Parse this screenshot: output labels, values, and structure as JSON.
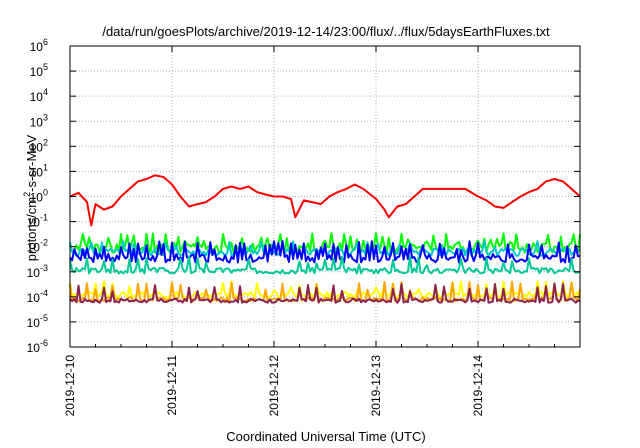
{
  "chart_data": {
    "type": "line",
    "title": "/data/run/goesPlots/archive/2019-12-14/23:00/flux/../flux/5daysEarthFluxes.txt",
    "xlabel": "Coordinated Universal Time (UTC)",
    "ylabel": {
      "base": "protons/cm",
      "exp": "2",
      "rest": "-s-sr-MeV"
    },
    "yscale": "log",
    "ylim": [
      -6,
      6
    ],
    "yticks": [
      {
        "base": "10",
        "exp": "6"
      },
      {
        "base": "10",
        "exp": "5"
      },
      {
        "base": "10",
        "exp": "4"
      },
      {
        "base": "10",
        "exp": "3"
      },
      {
        "base": "10",
        "exp": "2"
      },
      {
        "base": "10",
        "exp": "1"
      },
      {
        "base": "10",
        "exp": "0"
      },
      {
        "base": "10",
        "exp": "-1"
      },
      {
        "base": "10",
        "exp": "-2"
      },
      {
        "base": "10",
        "exp": "-3"
      },
      {
        "base": "10",
        "exp": "-4"
      },
      {
        "base": "10",
        "exp": "-5"
      },
      {
        "base": "10",
        "exp": "-6"
      }
    ],
    "xlim": [
      "2019-12-10 00:00",
      "2019-12-15 00:00"
    ],
    "xticks": [
      "2019-12-10",
      "2019-12-11",
      "2019-12-12",
      "2019-12-13",
      "2019-12-14"
    ],
    "grid": true,
    "series": [
      {
        "color": "#ff0000",
        "points": [
          [
            "2019-12-10 00:00",
            1.0
          ],
          [
            "2019-12-10 02:00",
            1.4
          ],
          [
            "2019-12-10 04:00",
            0.6
          ],
          [
            "2019-12-10 05:00",
            0.07
          ],
          [
            "2019-12-10 06:00",
            0.5
          ],
          [
            "2019-12-10 08:00",
            0.3
          ],
          [
            "2019-12-10 10:00",
            0.4
          ],
          [
            "2019-12-10 12:00",
            1.0
          ],
          [
            "2019-12-10 14:00",
            2.0
          ],
          [
            "2019-12-10 16:00",
            4.0
          ],
          [
            "2019-12-10 18:00",
            5.0
          ],
          [
            "2019-12-10 20:00",
            7.0
          ],
          [
            "2019-12-10 22:00",
            6.0
          ],
          [
            "2019-12-11 00:00",
            3.0
          ],
          [
            "2019-12-11 02:00",
            1.0
          ],
          [
            "2019-12-11 04:00",
            0.4
          ],
          [
            "2019-12-11 06:00",
            0.5
          ],
          [
            "2019-12-11 08:00",
            0.6
          ],
          [
            "2019-12-11 10:00",
            1.0
          ],
          [
            "2019-12-11 12:00",
            2.0
          ],
          [
            "2019-12-11 14:00",
            2.5
          ],
          [
            "2019-12-11 16:00",
            2.0
          ],
          [
            "2019-12-11 18:00",
            2.5
          ],
          [
            "2019-12-11 20:00",
            1.5
          ],
          [
            "2019-12-11 22:00",
            1.2
          ],
          [
            "2019-12-12 00:00",
            1.0
          ],
          [
            "2019-12-12 02:00",
            1.0
          ],
          [
            "2019-12-12 04:00",
            0.8
          ],
          [
            "2019-12-12 05:00",
            0.15
          ],
          [
            "2019-12-12 07:00",
            0.7
          ],
          [
            "2019-12-12 09:00",
            0.6
          ],
          [
            "2019-12-12 11:00",
            0.5
          ],
          [
            "2019-12-12 13:00",
            1.0
          ],
          [
            "2019-12-12 15:00",
            1.5
          ],
          [
            "2019-12-12 17:00",
            2.0
          ],
          [
            "2019-12-12 19:00",
            3.0
          ],
          [
            "2019-12-12 21:00",
            2.0
          ],
          [
            "2019-12-13 00:00",
            0.8
          ],
          [
            "2019-12-13 02:00",
            0.3
          ],
          [
            "2019-12-13 03:00",
            0.15
          ],
          [
            "2019-12-13 05:00",
            0.4
          ],
          [
            "2019-12-13 07:00",
            0.5
          ],
          [
            "2019-12-13 09:00",
            1.0
          ],
          [
            "2019-12-13 11:00",
            2.0
          ],
          [
            "2019-12-13 13:00",
            2.0
          ],
          [
            "2019-12-13 15:00",
            2.0
          ],
          [
            "2019-12-13 17:00",
            2.0
          ],
          [
            "2019-12-13 19:00",
            2.0
          ],
          [
            "2019-12-13 21:00",
            2.0
          ],
          [
            "2019-12-14 00:00",
            1.0
          ],
          [
            "2019-12-14 02:00",
            0.7
          ],
          [
            "2019-12-14 04:00",
            0.4
          ],
          [
            "2019-12-14 06:00",
            0.35
          ],
          [
            "2019-12-14 08:00",
            0.6
          ],
          [
            "2019-12-14 10:00",
            1.0
          ],
          [
            "2019-12-14 12:00",
            1.5
          ],
          [
            "2019-12-14 14:00",
            2.0
          ],
          [
            "2019-12-14 16:00",
            4.0
          ],
          [
            "2019-12-14 18:00",
            5.0
          ],
          [
            "2019-12-14 20:00",
            4.0
          ],
          [
            "2019-12-14 22:00",
            2.0
          ],
          [
            "2019-12-15 00:00",
            1.0
          ]
        ]
      },
      {
        "color": "#00ff00",
        "baseline": 0.009,
        "spike": 0.025,
        "amp": 1.6,
        "seed": 11,
        "spikeEvery": 3
      },
      {
        "color": "#00c8c8",
        "baseline": 0.006,
        "spike": 0.012,
        "amp": 1.4,
        "seed": 5,
        "spikeEvery": 5
      },
      {
        "color": "#0000ff",
        "baseline": 0.0035,
        "spike": 0.012,
        "amp": 1.5,
        "seed": 7,
        "spikeEvery": 2
      },
      {
        "color": "#00c896",
        "baseline": 0.0011,
        "spike": 0.003,
        "amp": 1.3,
        "seed": 3,
        "spikeEvery": 4
      },
      {
        "color": "#ffff00",
        "baseline": 0.00012,
        "spike": 0.0003,
        "amp": 1.3,
        "seed": 9,
        "spikeEvery": 4
      },
      {
        "color": "#ffa500",
        "baseline": 8e-05,
        "spike": 0.0003,
        "amp": 1.2,
        "seed": 13,
        "spikeEvery": 4
      },
      {
        "color": "#8b2252",
        "baseline": 7e-05,
        "spike": 0.00025,
        "amp": 1.2,
        "seed": 17,
        "spikeEvery": 4
      }
    ]
  }
}
